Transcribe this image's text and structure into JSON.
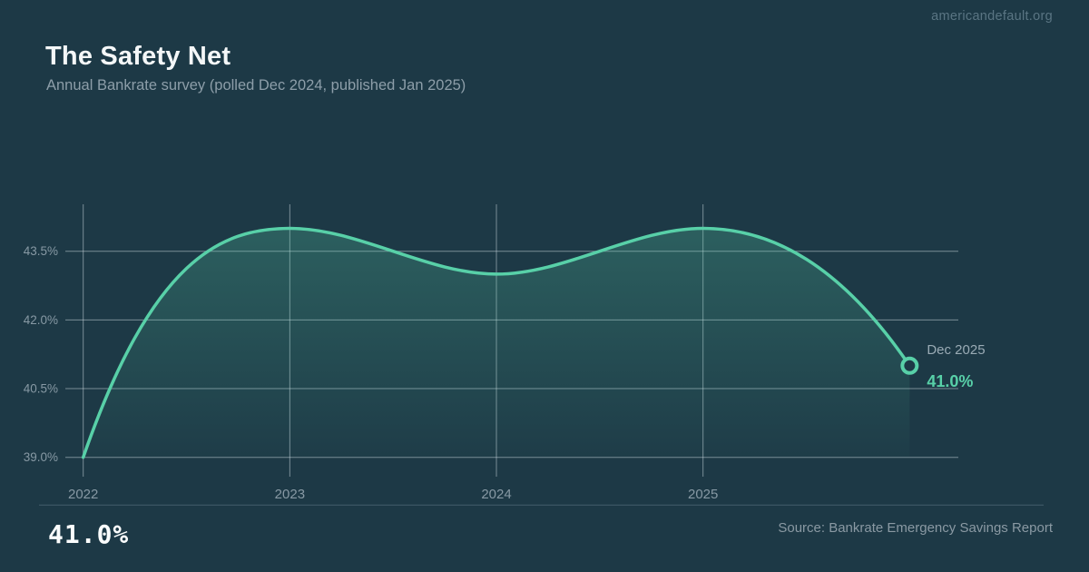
{
  "page": {
    "watermark": "americandefault.org",
    "title": "The Safety Net",
    "subtitle": "Annual Bankrate survey (polled Dec 2024, published Jan 2025)",
    "big_stat": "41.0%",
    "source": "Source: Bankrate Emergency Savings Report"
  },
  "colors": {
    "background": "#1d3946",
    "accent": "#58d0a8",
    "grid": "rgba(214,225,231,0.5)",
    "baseline": "rgba(148,173,186,0.32)",
    "tick_text": "#8799a4",
    "annotation_text": "#9aabb5"
  },
  "chart_data": {
    "type": "line",
    "title": "The Safety Net",
    "x": [
      2022,
      2023,
      2024,
      2025,
      2026
    ],
    "values": [
      39.0,
      44.0,
      43.0,
      44.0,
      41.0
    ],
    "x_ticks": [
      2022,
      2023,
      2024,
      2025
    ],
    "x_tick_labels": [
      "2022",
      "2023",
      "2024",
      "2025"
    ],
    "y_ticks": [
      39.0,
      40.5,
      42.0,
      43.5
    ],
    "y_tick_labels": [
      "39.0%",
      "40.5%",
      "42.0%",
      "43.5%"
    ],
    "ylim": [
      38.6,
      44.6
    ],
    "xlabel": "",
    "ylabel": "",
    "grid": true,
    "legend": false,
    "annotation": {
      "label": "Dec 2025",
      "value": "41.0%"
    }
  }
}
